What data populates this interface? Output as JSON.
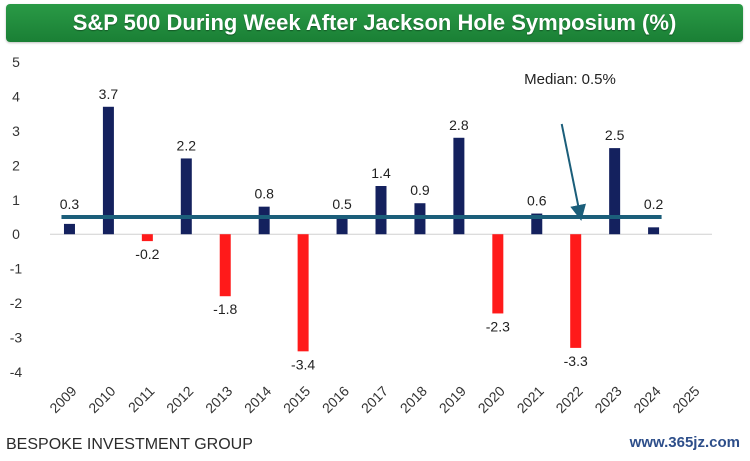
{
  "chart_data": {
    "type": "bar",
    "title": "S&P 500 During Week After Jackson Hole Symposium (%)",
    "categories": [
      "2009",
      "2010",
      "2011",
      "2012",
      "2013",
      "2014",
      "2015",
      "2016",
      "2017",
      "2018",
      "2019",
      "2020",
      "2021",
      "2022",
      "2023",
      "2024",
      "2025"
    ],
    "values": [
      0.3,
      3.7,
      -0.2,
      2.2,
      -1.8,
      0.8,
      -3.4,
      0.5,
      1.4,
      0.9,
      2.8,
      -2.3,
      0.6,
      -3.3,
      2.5,
      0.2,
      null
    ],
    "data_labels": [
      "0.3",
      "3.7",
      "-0.2",
      "2.2",
      "-1.8",
      "0.8",
      "-3.4",
      "0.5",
      "1.4",
      "0.9",
      "2.8",
      "-2.3",
      "0.6",
      "-3.3",
      "2.5",
      "0.2",
      ""
    ],
    "ylim": [
      -4,
      5
    ],
    "yticks": [
      "5",
      "4",
      "3",
      "2",
      "1",
      "0",
      "-1",
      "-2",
      "-3",
      "-4"
    ],
    "median": 0.5,
    "median_label": "Median: 0.5%",
    "colors": {
      "positive": "#14215e",
      "negative": "#ff1a1a",
      "median_line": "#1b5e7a",
      "title_bg": "#1f8b3b"
    },
    "grid": false
  },
  "footer": {
    "source": "BESPOKE INVESTMENT GROUP",
    "watermark": "www.365jz.com"
  }
}
